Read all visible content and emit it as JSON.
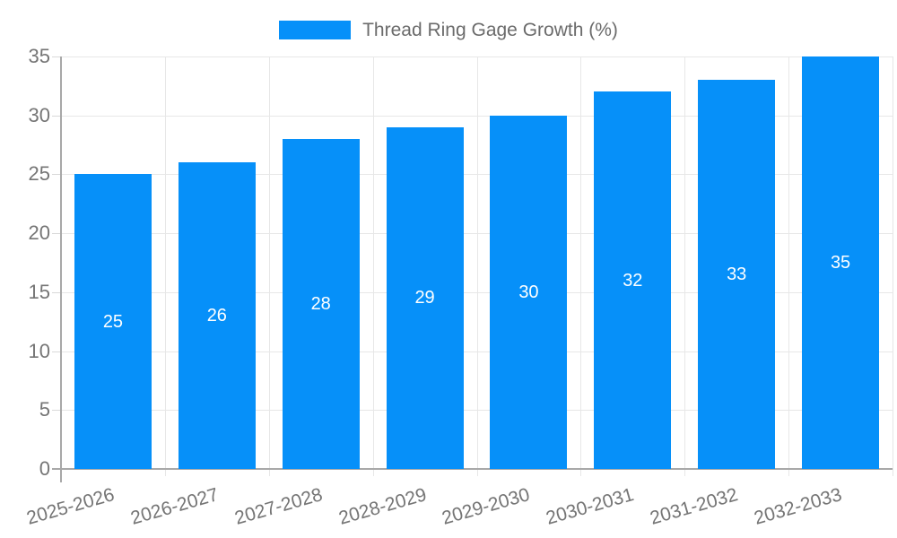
{
  "chart_data": {
    "type": "bar",
    "legend": "Thread Ring Gage Growth (%)",
    "categories": [
      "2025-2026",
      "2026-2027",
      "2027-2028",
      "2028-2029",
      "2029-2030",
      "2030-2031",
      "2031-2032",
      "2032-2033"
    ],
    "values": [
      25,
      26,
      28,
      29,
      30,
      32,
      33,
      35
    ],
    "yticks": [
      0,
      5,
      10,
      15,
      20,
      25,
      30,
      35
    ],
    "ylim": [
      0,
      35
    ],
    "grid": true,
    "legend_position": "top",
    "xlabel": "",
    "ylabel": "",
    "colors": {
      "bar": "#0690f9",
      "bar_label": "#ffffff",
      "grid": "#e7e7e7",
      "axis": "#a8a8a8",
      "tick_mark": "#d9d9d9",
      "tick_text": "#757575",
      "legend_text": "#6b6b6b"
    }
  }
}
